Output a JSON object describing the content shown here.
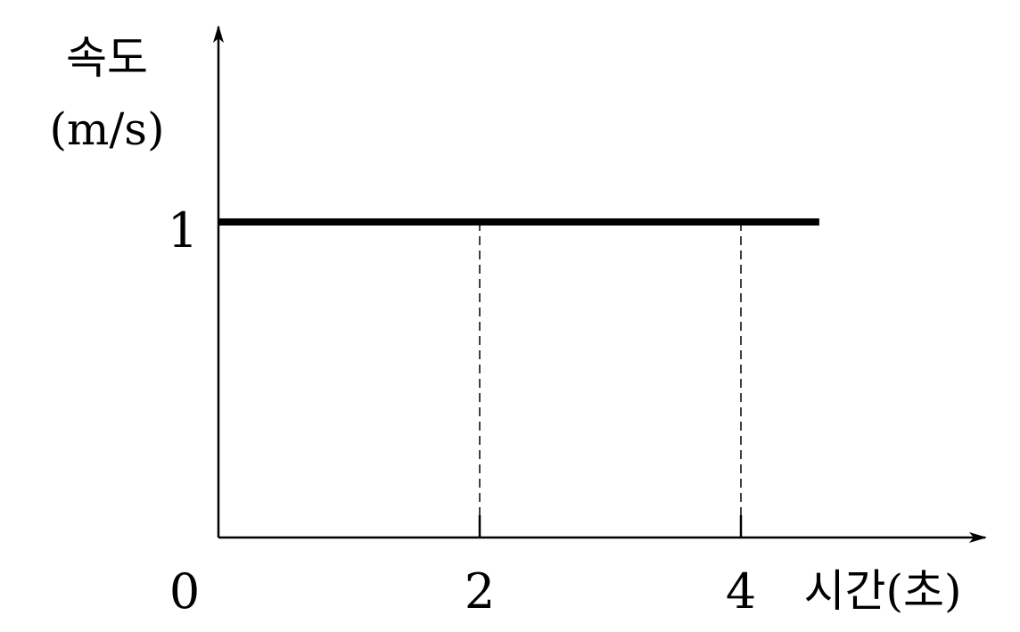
{
  "chart_data": {
    "type": "line",
    "title": "",
    "ylabel_line1": "속도",
    "ylabel_line2": "(m/s)",
    "xlabel": "시간(초)",
    "origin_label": "0",
    "x_ticks": [
      2,
      4
    ],
    "x_tick_labels": [
      "2",
      "4"
    ],
    "y_ticks": [
      1
    ],
    "y_tick_labels": [
      "1"
    ],
    "xlim": [
      0,
      4.6
    ],
    "ylim": [
      0,
      1
    ],
    "grid": false,
    "series": [
      {
        "x": [
          0,
          4.6
        ],
        "y": [
          1,
          1
        ],
        "color": "#000000"
      }
    ],
    "guide_lines": [
      {
        "x": 2,
        "y": 1
      },
      {
        "x": 4,
        "y": 1
      }
    ]
  }
}
